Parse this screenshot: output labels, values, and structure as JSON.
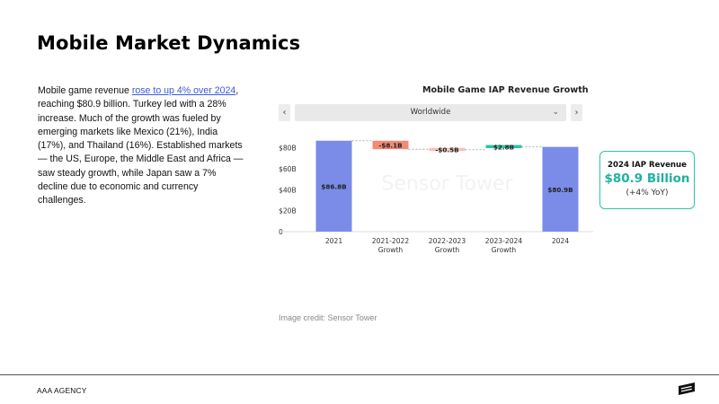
{
  "slide": {
    "title": "Mobile Market Dynamics",
    "body": {
      "link_text": "rose to up 4% over 2024",
      "before": "Mobile game revenue ",
      "after": ", reaching $80.9 billion. Turkey led with a 28% increase. Much of the growth was fueled by emerging markets like Mexico (21%), India (17%), and Thailand (16%). Established markets — the US, Europe, the Middle East and Africa — saw steady growth, while Japan saw a 7% decline due to economic and currency challenges."
    },
    "credit": "Image credit: Sensor Tower"
  },
  "selector": {
    "prev_icon": "chevron-left-icon",
    "next_icon": "chevron-right-icon",
    "label": "Worldwide",
    "caret": "⌄",
    "prev_glyph": "‹",
    "next_glyph": "›"
  },
  "callout": {
    "title": "2024 IAP Revenue",
    "value": "$80.9 Billion",
    "yoy": "(+4% YoY)"
  },
  "footer": {
    "agency": "AAA AGENCY",
    "logo_icon": "agency-logo-icon"
  },
  "colors": {
    "total": "#7a8ce8",
    "decrease": "#f28a74",
    "decrease_small": "#f6c2b6",
    "increase": "#2ec4a5",
    "accent": "#20b2a0"
  },
  "chart_data": {
    "type": "bar",
    "subtype": "waterfall",
    "title": "Mobile Game IAP Revenue Growth",
    "watermark": "Sensor Tower",
    "categories": [
      "2021",
      "2021-2022\nGrowth",
      "2022-2023\nGrowth",
      "2023-2024\nGrowth",
      "2024"
    ],
    "values": [
      86.8,
      -8.1,
      -0.5,
      2.8,
      80.9
    ],
    "kinds": [
      "total",
      "change",
      "change",
      "change",
      "total"
    ],
    "data_labels": [
      "$86.8B",
      "-$8.1B",
      "-$0.5B",
      "$2.8B",
      "$80.9B"
    ],
    "yticks": [
      0,
      20,
      40,
      60,
      80
    ],
    "ytick_labels": [
      "0",
      "$20B",
      "$40B",
      "$60B",
      "$80B"
    ],
    "ylim": [
      0,
      90
    ],
    "grid": false,
    "connectors": true
  }
}
